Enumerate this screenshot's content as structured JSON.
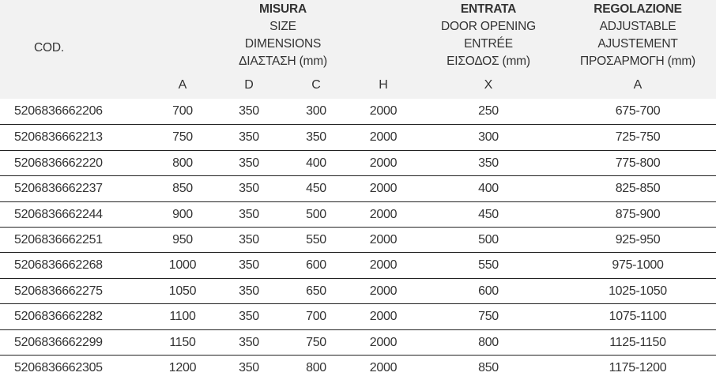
{
  "header": {
    "cod": "COD.",
    "size": [
      "MISURA",
      "SIZE",
      "DIMENSIONS",
      "ΔΙΑΣΤΑΣΗ (mm)"
    ],
    "door": [
      "ENTRATA",
      "DOOR OPENING",
      "ENTRÉE",
      "ΕΙΣΟΔΟΣ (mm)"
    ],
    "adjust": [
      "REGOLAZIONE",
      "ADJUSTABLE",
      "AJUSTEMENT",
      "ΠΡΟΣΑΡΜΟΓΗ (mm)"
    ],
    "sub": [
      "A",
      "D",
      "C",
      "H",
      "X",
      "A"
    ]
  },
  "rows": [
    [
      "5206836662206",
      "700",
      "350",
      "300",
      "2000",
      "250",
      "675-700"
    ],
    [
      "5206836662213",
      "750",
      "350",
      "350",
      "2000",
      "300",
      "725-750"
    ],
    [
      "5206836662220",
      "800",
      "350",
      "400",
      "2000",
      "350",
      "775-800"
    ],
    [
      "5206836662237",
      "850",
      "350",
      "450",
      "2000",
      "400",
      "825-850"
    ],
    [
      "5206836662244",
      "900",
      "350",
      "500",
      "2000",
      "450",
      "875-900"
    ],
    [
      "5206836662251",
      "950",
      "350",
      "550",
      "2000",
      "500",
      "925-950"
    ],
    [
      "5206836662268",
      "1000",
      "350",
      "600",
      "2000",
      "550",
      "975-1000"
    ],
    [
      "5206836662275",
      "1050",
      "350",
      "650",
      "2000",
      "600",
      "1025-1050"
    ],
    [
      "5206836662282",
      "1100",
      "350",
      "700",
      "2000",
      "750",
      "1075-1100"
    ],
    [
      "5206836662299",
      "1150",
      "350",
      "750",
      "2000",
      "800",
      "1125-1150"
    ],
    [
      "5206836662305",
      "1200",
      "350",
      "800",
      "2000",
      "850",
      "1175-1200"
    ]
  ]
}
